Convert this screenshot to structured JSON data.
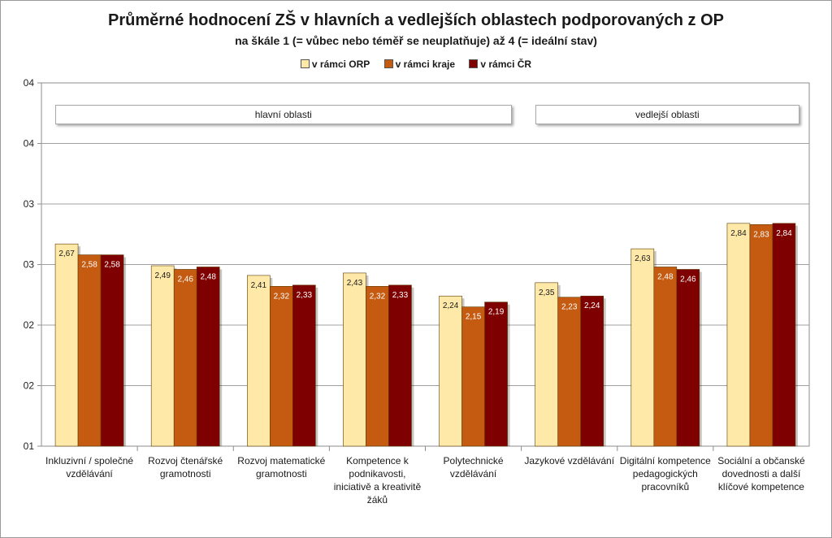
{
  "chart_data": {
    "type": "bar",
    "title": "Průměrné hodnocení ZŠ v hlavních a vedlejších oblastech podporovaných z OP",
    "subtitle": "na škále 1 (= vůbec nebo téměř se neuplatňuje) až 4 (= ideální stav)",
    "ylim": [
      1,
      4
    ],
    "yticks": [
      1,
      1.5,
      2,
      2.5,
      3,
      3.5,
      4
    ],
    "ytick_labels": [
      "01",
      "02",
      "02",
      "03",
      "03",
      "04",
      "04"
    ],
    "grid": true,
    "legend_position": "top-center",
    "categories": [
      "Inkluzivní / společné vzdělávání",
      "Rozvoj čtenářské gramotnosti",
      "Rozvoj matematické gramotnosti",
      "Kompetence k podnikavosti, iniciativě a kreativitě žáků",
      "Polytechnické vzdělávání",
      "Jazykové vzdělávání",
      "Digitální kompetence pedagogických pracovníků",
      "Sociální a občanské dovednosti a další klíčové kompetence"
    ],
    "series": [
      {
        "name": "v rámci ORP",
        "color": "#FFE9A8",
        "label_color": "#1a1a1a",
        "values": [
          2.67,
          2.49,
          2.41,
          2.43,
          2.24,
          2.35,
          2.63,
          2.84
        ],
        "labels": [
          "2,67",
          "2,49",
          "2,41",
          "2,43",
          "2,24",
          "2,35",
          "2,63",
          "2,84"
        ]
      },
      {
        "name": "v rámci kraje",
        "color": "#C55A11",
        "label_color": "#ffffff",
        "values": [
          2.58,
          2.46,
          2.32,
          2.32,
          2.15,
          2.23,
          2.48,
          2.83
        ],
        "labels": [
          "2,58",
          "2,46",
          "2,32",
          "2,32",
          "2,15",
          "2,23",
          "2,48",
          "2,83"
        ]
      },
      {
        "name": "v rámci ČR",
        "color": "#7F0000",
        "label_color": "#ffffff",
        "values": [
          2.58,
          2.48,
          2.33,
          2.33,
          2.19,
          2.24,
          2.46,
          2.84
        ],
        "labels": [
          "2,58",
          "2,48",
          "2,33",
          "2,33",
          "2,19",
          "2,24",
          "2,46",
          "2,84"
        ]
      }
    ],
    "annotations": [
      {
        "text": "hlavní oblasti",
        "from_category": 0,
        "to_category": 4
      },
      {
        "text": "vedlejší oblasti",
        "from_category": 5,
        "to_category": 7
      }
    ]
  }
}
